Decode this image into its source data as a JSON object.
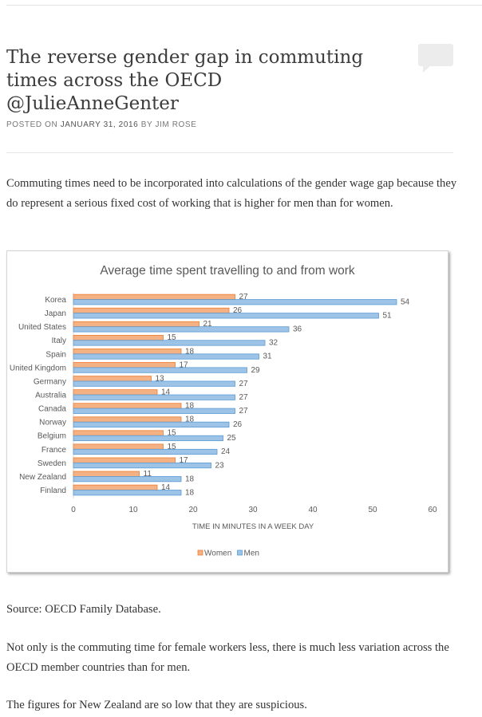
{
  "post": {
    "title_lines": [
      "The reverse gender gap in commuting",
      "times across the OECD",
      "@JulieAnneGenter"
    ],
    "meta_posted_on": "POSTED ON",
    "meta_date": "JANUARY 31, 2016",
    "meta_by": "BY JIM ROSE",
    "paragraph_1": "Commuting times need to be incorporated into calculations of the gender wage gap because they do represent a serious fixed cost of working that is higher for men than for women.",
    "paragraph_2": "Source: OECD Family Database.",
    "paragraph_3": "Not only is the commuting time for female workers less, there is much less variation across the OECD member countries than for men.",
    "paragraph_4": "The figures for New Zealand are so low that they are suspicious."
  },
  "chart_data": {
    "type": "bar",
    "orientation": "horizontal",
    "title": "Average time spent travelling to and from work",
    "xlabel": "TIME IN MINUTES IN A WEEK DAY",
    "ylabel": "",
    "xlim": [
      0,
      60
    ],
    "xticks": [
      0,
      10,
      20,
      30,
      40,
      50,
      60
    ],
    "categories": [
      "Korea",
      "Japan",
      "United States",
      "Italy",
      "Spain",
      "United Kingdom",
      "Germany",
      "Australia",
      "Canada",
      "Norway",
      "Belgium",
      "France",
      "Sweden",
      "New Zealand",
      "Finland"
    ],
    "series": [
      {
        "name": "Women",
        "color": "#f4b183",
        "stroke": "#ed7d31",
        "values": [
          27,
          26,
          21,
          15,
          18,
          17,
          13,
          14,
          18,
          18,
          15,
          15,
          17,
          11,
          14
        ]
      },
      {
        "name": "Men",
        "color": "#9dc3e6",
        "stroke": "#5b9bd5",
        "values": [
          54,
          51,
          36,
          32,
          31,
          29,
          27,
          27,
          27,
          26,
          25,
          24,
          23,
          18,
          18
        ]
      }
    ],
    "grid": false,
    "legend": "bottom"
  }
}
